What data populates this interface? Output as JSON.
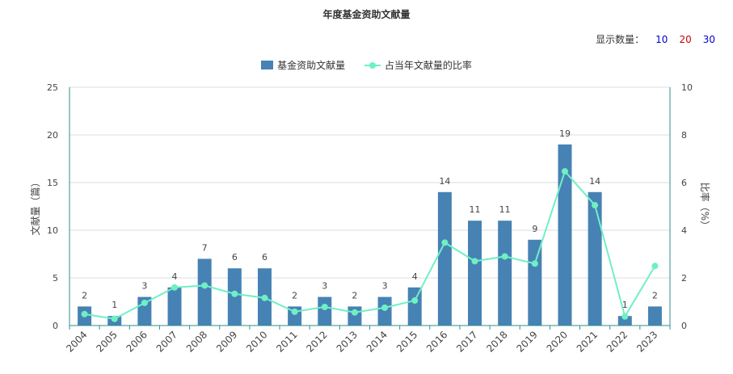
{
  "chart_title": "年度基金资助文献量",
  "display_count": {
    "label": "显示数量：",
    "options": [
      {
        "label": "10",
        "color": "#0000cc"
      },
      {
        "label": "20",
        "color": "#cc0000"
      },
      {
        "label": "30",
        "color": "#0000cc"
      }
    ]
  },
  "chart_data": {
    "type": "bar",
    "title": "年度基金资助文献量",
    "categories": [
      "2004",
      "2005",
      "2006",
      "2007",
      "2008",
      "2009",
      "2010",
      "2011",
      "2012",
      "2013",
      "2014",
      "2015",
      "2016",
      "2017",
      "2018",
      "2019",
      "2020",
      "2021",
      "2022",
      "2023"
    ],
    "series": [
      {
        "name": "基金资助文献量",
        "type": "bar",
        "axis": "left",
        "color": "#4682b4",
        "values": [
          2,
          1,
          3,
          4,
          7,
          6,
          6,
          2,
          3,
          2,
          3,
          4,
          14,
          11,
          11,
          9,
          19,
          14,
          1,
          2
        ]
      },
      {
        "name": "占当年文献量的比率",
        "type": "line",
        "axis": "right",
        "color": "#6ff0c4",
        "values": [
          0.48,
          0.28,
          0.95,
          1.6,
          1.68,
          1.33,
          1.16,
          0.58,
          0.78,
          0.55,
          0.75,
          1.05,
          3.48,
          2.7,
          2.9,
          2.6,
          6.47,
          5.05,
          0.38,
          2.5
        ]
      }
    ],
    "y_left": {
      "label": "文献量（篇）",
      "min": 0,
      "max": 25,
      "ticks": [
        0,
        5,
        10,
        15,
        20,
        25
      ]
    },
    "y_right": {
      "label": "比率（%）",
      "min": 0,
      "max": 10,
      "ticks": [
        0,
        2,
        4,
        6,
        8,
        10
      ]
    },
    "grid": true,
    "legend_position": "top-center",
    "axis_color": "#2f8f8f"
  }
}
